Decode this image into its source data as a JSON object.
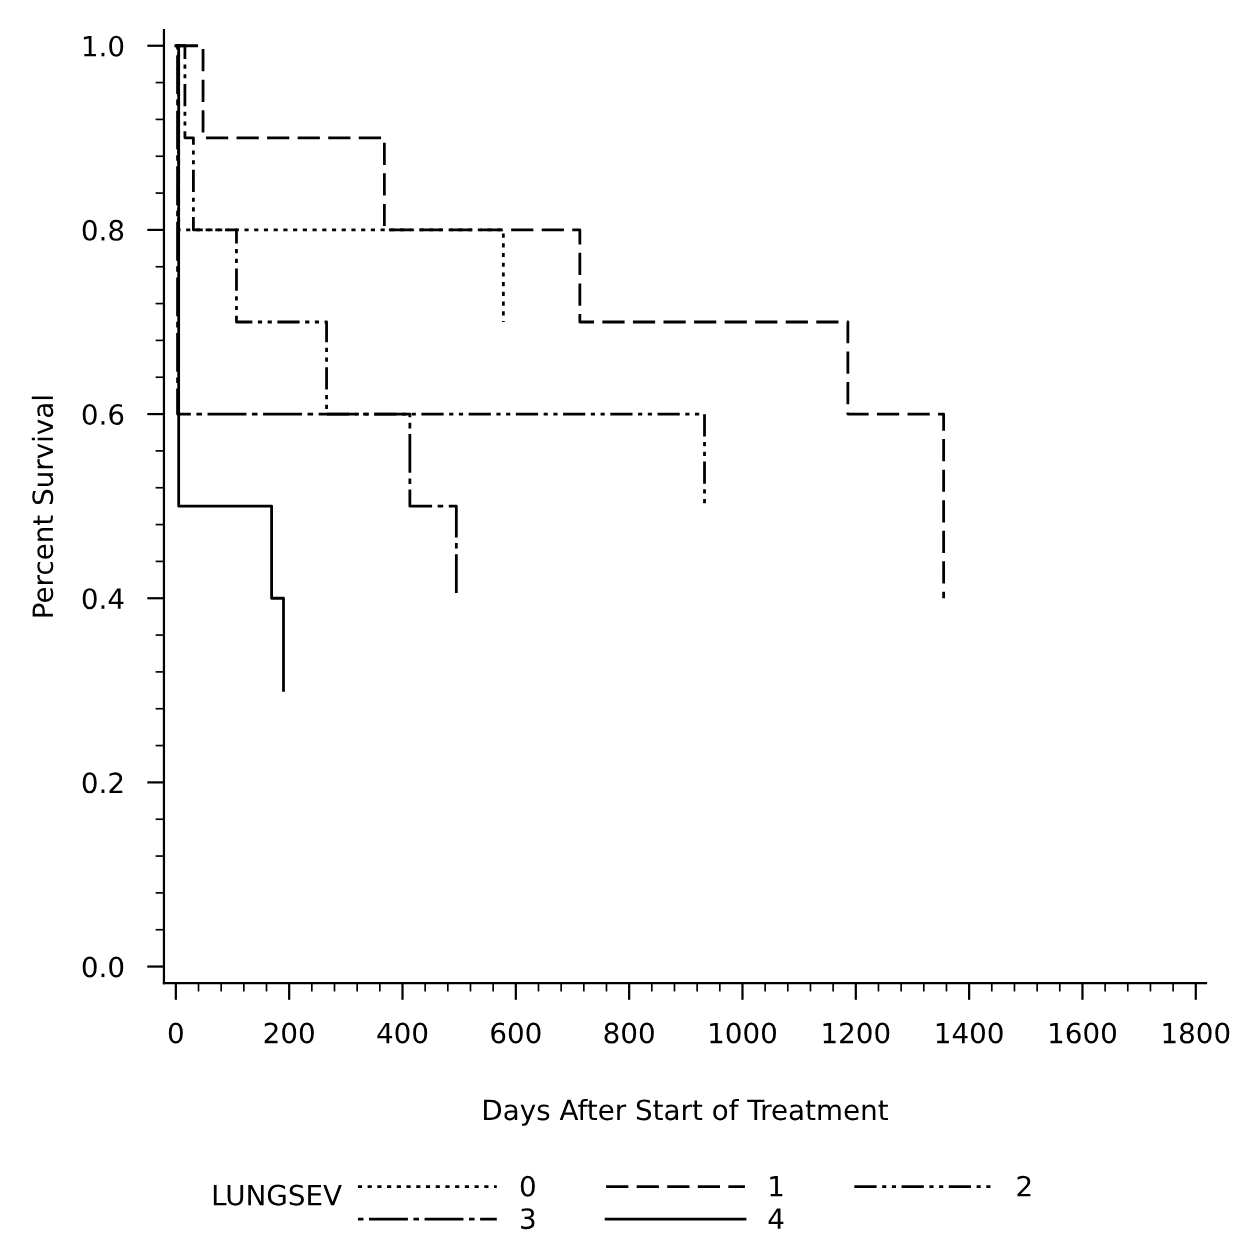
{
  "chart_data": {
    "type": "step",
    "xlabel": "Days After Start of Treatment",
    "ylabel": "Percent Survival",
    "legend_title": "LUNGSEV",
    "legend": "bottom",
    "grid": false,
    "xlim": [
      -21,
      1818
    ],
    "ylim": [
      -0.018,
      1.017
    ],
    "xticks": [
      0,
      200,
      400,
      600,
      800,
      1000,
      1200,
      1400,
      1600,
      1800
    ],
    "yticks": [
      {
        "value": 0,
        "label": "0.0"
      },
      {
        "value": 0.2,
        "label": "0.2"
      },
      {
        "value": 0.4,
        "label": "0.4"
      },
      {
        "value": 0.6,
        "label": "0.6"
      },
      {
        "value": 0.8,
        "label": "0.8"
      },
      {
        "value": 1,
        "label": "1.0"
      }
    ],
    "series": [
      {
        "name": "0",
        "color": "#000000",
        "line_style": "dotted",
        "x": [
          0,
          5,
          578
        ],
        "values": [
          1,
          0.8,
          0.7
        ]
      },
      {
        "name": "1",
        "color": "#000000",
        "line_style": "dashed",
        "x": [
          0,
          48,
          368,
          713,
          1186,
          1355
        ],
        "values": [
          1,
          0.9,
          0.8,
          0.7,
          0.6,
          0.4
        ]
      },
      {
        "name": "2",
        "color": "#000000",
        "line_style": "dashdot",
        "x": [
          0,
          16,
          31,
          107,
          266,
          933
        ],
        "values": [
          1,
          0.9,
          0.8,
          0.7,
          0.6,
          0.5
        ]
      },
      {
        "name": "3",
        "color": "#000000",
        "line_style": "longdash",
        "x": [
          0,
          3,
          413,
          495
        ],
        "values": [
          1,
          0.6,
          0.5,
          0.4
        ]
      },
      {
        "name": "4",
        "color": "#000000",
        "line_style": "solid",
        "x": [
          0,
          5,
          169,
          190
        ],
        "values": [
          1,
          0.5,
          0.4,
          0.3
        ]
      }
    ]
  }
}
